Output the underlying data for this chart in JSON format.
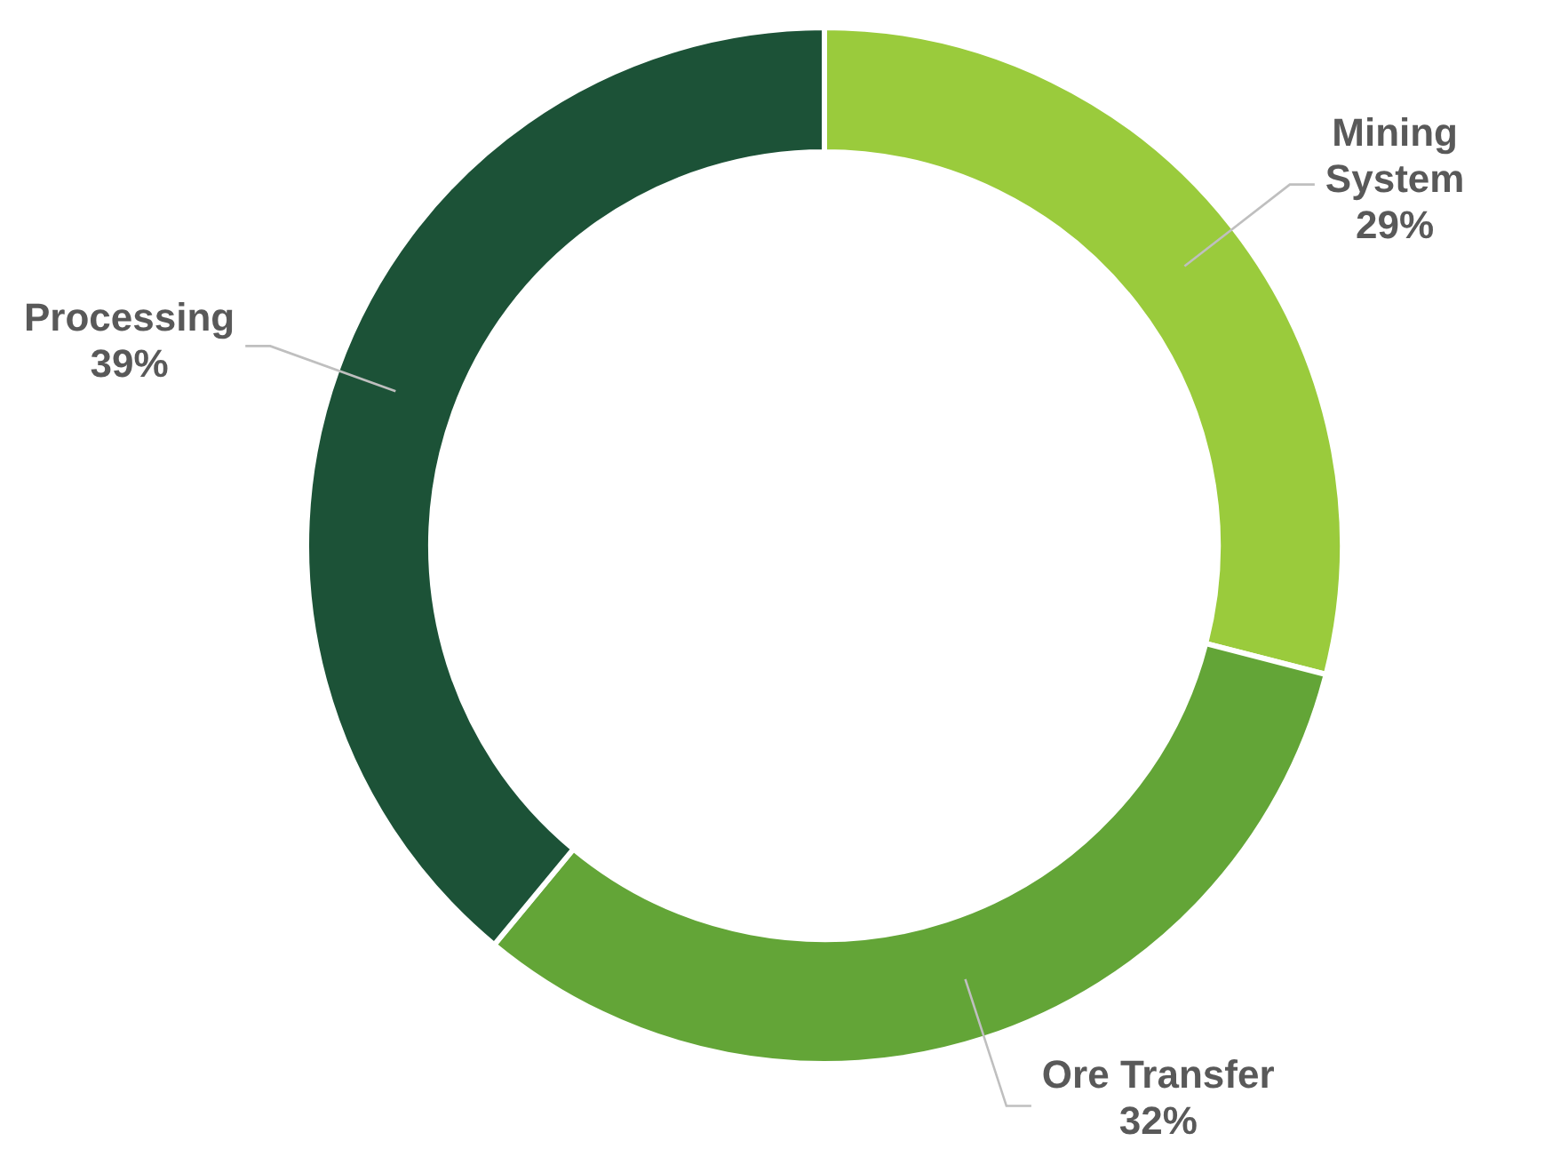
{
  "chart_data": {
    "type": "donut",
    "categories": [
      "Mining System",
      "Ore Transfer",
      "Processing"
    ],
    "values": [
      29,
      32,
      39
    ],
    "colors": [
      "#9acb3c",
      "#63a537",
      "#1c5237"
    ],
    "value_labels": [
      "29%",
      "32%",
      "39%"
    ]
  }
}
